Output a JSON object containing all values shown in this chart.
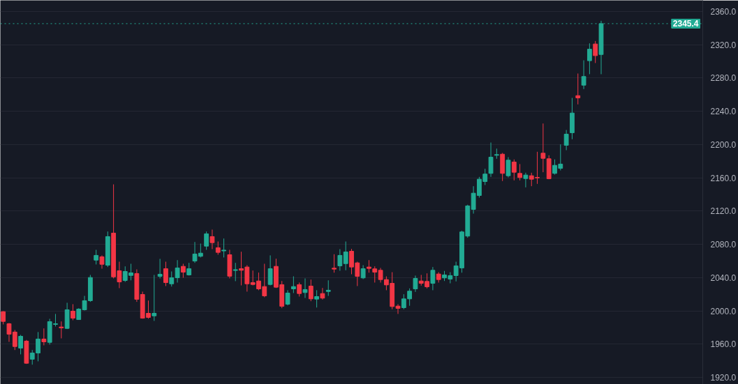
{
  "chart_data": {
    "type": "candlestick",
    "categories": [
      null,
      null,
      null,
      null,
      null,
      null,
      null,
      null,
      null,
      null,
      null,
      null,
      null,
      null,
      null,
      null,
      null,
      null,
      null,
      null,
      null,
      null,
      null,
      null,
      null,
      null,
      null,
      null,
      null,
      null,
      null,
      null,
      null,
      null,
      null,
      null,
      null,
      null,
      null,
      null,
      null,
      null,
      null,
      null,
      null,
      null,
      null,
      null,
      null,
      null,
      null,
      null,
      null,
      null,
      null,
      null,
      null,
      null,
      null,
      null,
      null,
      null,
      null,
      null,
      null,
      null,
      null,
      null,
      null,
      null,
      null,
      null,
      null,
      null,
      null,
      null,
      null,
      null,
      null,
      null,
      null,
      null,
      null,
      null,
      null,
      null,
      null,
      null,
      null,
      null,
      null,
      null,
      null,
      null,
      null,
      null,
      null,
      null,
      null,
      null,
      null,
      null,
      null,
      null,
      null,
      null,
      null,
      null,
      null,
      null,
      null,
      null,
      null,
      null,
      null,
      null,
      null,
      null,
      null,
      null,
      null
    ],
    "ohlc": [
      [
        1999.0,
        1999.6,
        1983.7,
        1987.3
      ],
      [
        1984.5,
        1985.4,
        1962.7,
        1971.9
      ],
      [
        1974.5,
        1977.0,
        1952.9,
        1957.1
      ],
      [
        1955.2,
        1971.1,
        1947.7,
        1969.4
      ],
      [
        1963.6,
        1965.0,
        1936.2,
        1937.0
      ],
      [
        1941.8,
        1952.9,
        1935.3,
        1949.3
      ],
      [
        1949.3,
        1974.5,
        1939.3,
        1966.1
      ],
      [
        1966.1,
        1978.9,
        1958.5,
        1962.7
      ],
      [
        1962.1,
        1990.4,
        1959.4,
        1987.0
      ],
      [
        1983.7,
        1996.3,
        1981.2,
        1984.5
      ],
      [
        1980.6,
        1987.3,
        1966.9,
        1979.5
      ],
      [
        1978.9,
        2009.7,
        1978.1,
        2001.3
      ],
      [
        1999.6,
        2008.0,
        1988.7,
        1991.2
      ],
      [
        1989.5,
        2003.2,
        1989.3,
        2002.1
      ],
      [
        2001.3,
        2018.0,
        2000.4,
        2012.2
      ],
      [
        2012.2,
        2043.2,
        2010.8,
        2040.1
      ],
      [
        2061.0,
        2073.4,
        2055.8,
        2066.7
      ],
      [
        2065.0,
        2066.7,
        2050.7,
        2056.0
      ],
      [
        2054.9,
        2095.4,
        2052.7,
        2089.3
      ],
      [
        2093.5,
        2152.1,
        2039.0,
        2040.9
      ],
      [
        2048.2,
        2059.1,
        2027.3,
        2034.8
      ],
      [
        2036.5,
        2053.5,
        2034.8,
        2047.4
      ],
      [
        2042.6,
        2056.6,
        2036.7,
        2045.7
      ],
      [
        2044.9,
        2049.9,
        2010.8,
        2013.9
      ],
      [
        2019.7,
        2023.1,
        1990.6,
        1991.2
      ],
      [
        1997.1,
        2012.4,
        1990.6,
        1992.1
      ],
      [
        1994.0,
        2043.2,
        1987.9,
        1997.1
      ],
      [
        2041.5,
        2062.5,
        2039.0,
        2044.0
      ],
      [
        2050.7,
        2059.1,
        2029.8,
        2034.0
      ],
      [
        2032.5,
        2047.4,
        2029.2,
        2039.8
      ],
      [
        2039.8,
        2061.0,
        2034.0,
        2051.6
      ],
      [
        2053.5,
        2056.6,
        2039.8,
        2046.5
      ],
      [
        2043.2,
        2057.7,
        2042.4,
        2050.7
      ],
      [
        2059.9,
        2082.8,
        2057.7,
        2068.3
      ],
      [
        2065.6,
        2080.9,
        2064.2,
        2069.4
      ],
      [
        2077.8,
        2095.4,
        2073.4,
        2092.6
      ],
      [
        2089.3,
        2097.7,
        2074.2,
        2082.0
      ],
      [
        2075.9,
        2083.4,
        2067.5,
        2070.3
      ],
      [
        2072.1,
        2087.0,
        2064.2,
        2073.0
      ],
      [
        2067.5,
        2073.4,
        2039.0,
        2041.7
      ],
      [
        2048.6,
        2057.7,
        2035.7,
        2049.5
      ],
      [
        2050.7,
        2071.1,
        2030.6,
        2048.8
      ],
      [
        2052.7,
        2054.9,
        2023.1,
        2032.5
      ],
      [
        2034.0,
        2048.5,
        2030.6,
        2031.7
      ],
      [
        2035.9,
        2046.0,
        2024.8,
        2026.4
      ],
      [
        2029.2,
        2056.6,
        2016.4,
        2018.0
      ],
      [
        2031.7,
        2066.7,
        2030.6,
        2050.7
      ],
      [
        2053.5,
        2062.7,
        2027.5,
        2028.4
      ],
      [
        2031.5,
        2035.9,
        2003.2,
        2005.5
      ],
      [
        2008.0,
        2024.8,
        2006.6,
        2021.4
      ],
      [
        2026.4,
        2041.5,
        2021.4,
        2029.2
      ],
      [
        2031.5,
        2034.0,
        2017.2,
        2020.8
      ],
      [
        2022.0,
        2039.0,
        2015.5,
        2025.6
      ],
      [
        2029.8,
        2037.6,
        2011.6,
        2014.4
      ],
      [
        2014.1,
        2024.8,
        2004.0,
        2017.2
      ],
      [
        2020.8,
        2027.5,
        2013.6,
        2015.3
      ],
      [
        2023.3,
        2036.7,
        2018.0,
        2024.8
      ],
      [
        2051.3,
        2068.1,
        2045.9,
        2050.2
      ],
      [
        2054.1,
        2074.2,
        2048.2,
        2066.7
      ],
      [
        2056.8,
        2083.4,
        2048.8,
        2070.8
      ],
      [
        2071.7,
        2074.5,
        2044.0,
        2052.7
      ],
      [
        2057.7,
        2059.1,
        2029.8,
        2041.5
      ],
      [
        2039.6,
        2054.9,
        2038.2,
        2050.7
      ],
      [
        2052.7,
        2061.0,
        2045.9,
        2051.0
      ],
      [
        2050.5,
        2053.5,
        2034.0,
        2046.5
      ],
      [
        2048.8,
        2051.6,
        2034.0,
        2037.6
      ],
      [
        2037.6,
        2041.5,
        2024.8,
        2031.2
      ],
      [
        2033.1,
        2046.5,
        2001.9,
        2005.2
      ],
      [
        2005.7,
        2008.0,
        1996.3,
        2003.0
      ],
      [
        2003.8,
        2020.0,
        2001.9,
        2014.4
      ],
      [
        2014.4,
        2027.0,
        2006.1,
        2023.7
      ],
      [
        2026.4,
        2042.4,
        2022.8,
        2039.0
      ],
      [
        2035.9,
        2043.2,
        2030.4,
        2033.1
      ],
      [
        2035.4,
        2045.1,
        2027.0,
        2028.9
      ],
      [
        2033.1,
        2052.7,
        2024.8,
        2048.8
      ],
      [
        2044.3,
        2046.5,
        2034.0,
        2037.6
      ],
      [
        2039.6,
        2048.0,
        2035.9,
        2043.2
      ],
      [
        2038.2,
        2046.5,
        2033.1,
        2042.4
      ],
      [
        2042.4,
        2059.1,
        2035.4,
        2054.1
      ],
      [
        2051.6,
        2096.3,
        2045.9,
        2094.9
      ],
      [
        2089.9,
        2127.6,
        2087.9,
        2126.2
      ],
      [
        2122.0,
        2149.9,
        2116.9,
        2141.5
      ],
      [
        2138.7,
        2161.1,
        2136.2,
        2158.3
      ],
      [
        2155.5,
        2170.8,
        2151.3,
        2164.5
      ],
      [
        2165.3,
        2202.4,
        2161.1,
        2184.8
      ],
      [
        2187.1,
        2195.1,
        2182.9,
        2187.9
      ],
      [
        2188.4,
        2189.9,
        2156.1,
        2165.3
      ],
      [
        2162.5,
        2184.8,
        2160.5,
        2181.2
      ],
      [
        2179.0,
        2182.1,
        2156.9,
        2166.7
      ],
      [
        2165.3,
        2176.5,
        2156.9,
        2160.3
      ],
      [
        2159.1,
        2166.1,
        2148.5,
        2163.3
      ],
      [
        2162.5,
        2166.1,
        2149.9,
        2158.3
      ],
      [
        2160.5,
        2191.3,
        2152.7,
        2159.9
      ],
      [
        2189.6,
        2225.3,
        2166.7,
        2183.4
      ],
      [
        2182.9,
        2187.1,
        2158.3,
        2158.9
      ],
      [
        2165.3,
        2182.1,
        2163.9,
        2175.0
      ],
      [
        2171.4,
        2200.2,
        2168.9,
        2176.5
      ],
      [
        2199.1,
        2217.5,
        2193.2,
        2212.5
      ],
      [
        2214.2,
        2256.1,
        2206.4,
        2237.9
      ],
      [
        2258.8,
        2285.4,
        2248.3,
        2256.1
      ],
      [
        2271.4,
        2301.3,
        2266.7,
        2281.8
      ],
      [
        2300.8,
        2321.7,
        2284.6,
        2314.7
      ],
      [
        2320.9,
        2324.5,
        2298.0,
        2306.9
      ],
      [
        2308.3,
        2348.8,
        2284.6,
        2345.4
      ],
      null,
      null,
      null,
      null,
      null,
      null,
      null,
      null,
      null,
      null,
      null,
      null,
      null,
      null,
      null,
      null,
      null
    ],
    "colors": [
      "#f23645",
      "#f23645",
      "#f23645",
      "#22ab94",
      "#f23645",
      "#22ab94",
      "#22ab94",
      "#f23645",
      "#22ab94",
      "#22ab94",
      "#f23645",
      "#22ab94",
      "#f23645",
      "#22ab94",
      "#22ab94",
      "#22ab94",
      "#22ab94",
      "#f23645",
      "#22ab94",
      "#f23645",
      "#f23645",
      "#22ab94",
      "#22ab94",
      "#f23645",
      "#f23645",
      "#f23645",
      "#22ab94",
      "#22ab94",
      "#f23645",
      "#22ab94",
      "#22ab94",
      "#f23645",
      "#22ab94",
      "#22ab94",
      "#22ab94",
      "#22ab94",
      "#f23645",
      "#f23645",
      "#22ab94",
      "#f23645",
      "#22ab94",
      "#f23645",
      "#f23645",
      "#f23645",
      "#f23645",
      "#f23645",
      "#22ab94",
      "#f23645",
      "#f23645",
      "#22ab94",
      "#22ab94",
      "#f23645",
      "#22ab94",
      "#f23645",
      "#22ab94",
      "#f23645",
      "#22ab94",
      "#f23645",
      "#22ab94",
      "#22ab94",
      "#f23645",
      "#f23645",
      "#22ab94",
      "#f23645",
      "#f23645",
      "#f23645",
      "#f23645",
      "#f23645",
      "#f23645",
      "#22ab94",
      "#22ab94",
      "#22ab94",
      "#f23645",
      "#f23645",
      "#22ab94",
      "#f23645",
      "#22ab94",
      "#22ab94",
      "#22ab94",
      "#22ab94",
      "#22ab94",
      "#22ab94",
      "#22ab94",
      "#22ab94",
      "#22ab94",
      "#22ab94",
      "#f23645",
      "#22ab94",
      "#f23645",
      "#f23645",
      "#22ab94",
      "#f23645",
      "#f23645",
      "#f23645",
      "#f23645",
      "#22ab94",
      "#22ab94",
      "#22ab94",
      "#22ab94",
      "#f23645",
      "#22ab94",
      "#22ab94",
      "#f23645",
      "#22ab94",
      null,
      null,
      null,
      null,
      null,
      null,
      null,
      null,
      null,
      null,
      null,
      null,
      null,
      null,
      null,
      null,
      null
    ],
    "ylim": [
      1911.6,
      2373.4
    ],
    "yticks": [
      {
        "value": 1920,
        "label": "1920.0"
      },
      {
        "value": 1960,
        "label": "1960.0"
      },
      {
        "value": 2000,
        "label": "2000.0"
      },
      {
        "value": 2040,
        "label": "2040.0"
      },
      {
        "value": 2080,
        "label": "2080.0"
      },
      {
        "value": 2120,
        "label": "2120.0"
      },
      {
        "value": 2160,
        "label": "2160.0"
      },
      {
        "value": 2200,
        "label": "2200.0"
      },
      {
        "value": 2240,
        "label": "2240.0"
      },
      {
        "value": 2280,
        "label": "2280.0"
      },
      {
        "value": 2320,
        "label": "2320.0"
      },
      {
        "value": 2360,
        "label": "2360.0"
      }
    ],
    "ref_lines": [
      {
        "axis": "y",
        "value": 2345.4,
        "label": "2345.4",
        "color": "#22ab94",
        "line_style": "dotted"
      }
    ],
    "grid": "y",
    "tick_labels": "y"
  }
}
